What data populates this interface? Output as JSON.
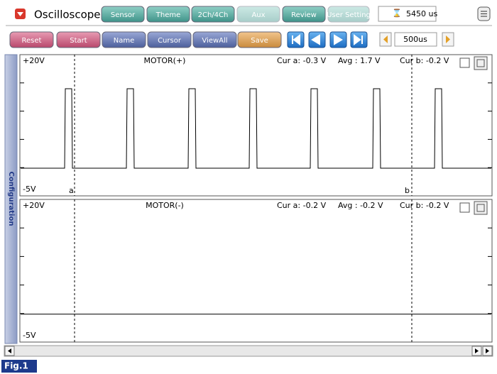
{
  "header": {
    "title": "Oscilloscope",
    "buttons": [
      "Sensor",
      "Theme",
      "2Ch/4Ch",
      "Aux",
      "Review",
      "User Setting"
    ],
    "time": "5450 us"
  },
  "toolbar": {
    "buttons": [
      "Reset",
      "Start",
      "Name",
      "Cursor",
      "ViewAll",
      "Save"
    ],
    "time_div": "500us"
  },
  "sidebar": "Configuration",
  "panels": [
    {
      "title": "MOTOR(+)",
      "top": "+20V",
      "bottom": "-5V",
      "cur_a": "Cur a: -0.3 V",
      "avg": "Avg  : 1.7 V",
      "cur_b": "Cur b: -0.2 V",
      "cursor_a": "a",
      "cursor_b": "b"
    },
    {
      "title": "MOTOR(-)",
      "top": "+20V",
      "bottom": "-5V",
      "cur_a": "Cur a: -0.2 V",
      "avg": "Avg  : -0.2 V",
      "cur_b": "Cur b: -0.2 V"
    }
  ],
  "figure": "Fig.1"
}
